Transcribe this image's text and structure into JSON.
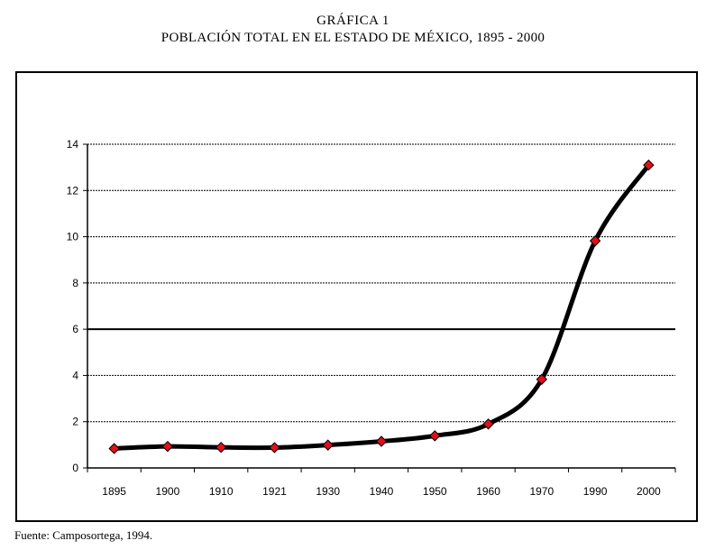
{
  "title": {
    "line1": "GRÁFICA 1",
    "line2": "POBLACIÓN TOTAL EN EL ESTADO DE MÉXICO, 1895 - 2000"
  },
  "source": "Fuente: Camposortega, 1994.",
  "colors": {
    "line": "#000000",
    "marker_fill": "#e0101a",
    "marker_stroke": "#000000",
    "grid": "#000000"
  },
  "chart_data": {
    "type": "line",
    "title": "POBLACIÓN TOTAL EN EL ESTADO DE MÉXICO, 1895 - 2000",
    "xlabel": "",
    "ylabel": "",
    "categories": [
      "1895",
      "1900",
      "1910",
      "1921",
      "1930",
      "1940",
      "1950",
      "1960",
      "1970",
      "1990",
      "2000"
    ],
    "series": [
      {
        "name": "Población total",
        "values": [
          0.84,
          0.93,
          0.89,
          0.88,
          0.99,
          1.15,
          1.39,
          1.9,
          3.83,
          9.82,
          13.1
        ]
      }
    ],
    "ylim": [
      0,
      14
    ],
    "yticks": [
      0,
      2,
      4,
      6,
      8,
      10,
      12,
      14
    ],
    "grid": true,
    "legend": "none"
  }
}
